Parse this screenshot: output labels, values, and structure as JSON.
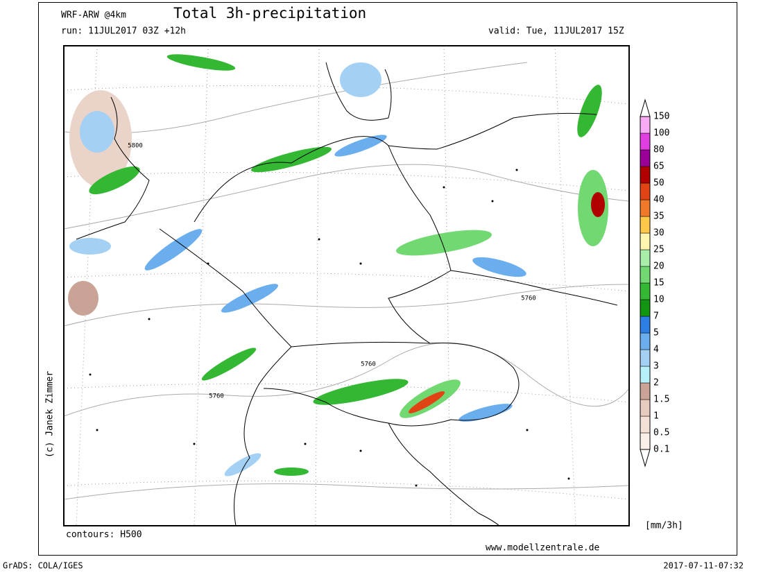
{
  "header": {
    "model": "WRF-ARW @4km",
    "title": "Total 3h-precipitation",
    "run": "run: 11JUL2017 03Z +12h",
    "valid": "valid: Tue, 11JUL2017 15Z"
  },
  "map": {
    "contour_labels": [
      "5800",
      "5760",
      "5760",
      "5760"
    ]
  },
  "legend": {
    "levels": [
      0.1,
      0.5,
      1,
      1.5,
      2,
      3,
      4,
      5,
      7,
      10,
      15,
      20,
      25,
      30,
      35,
      40,
      50,
      65,
      80,
      100,
      150
    ],
    "colors": [
      "#ffffff",
      "#fbf0e8",
      "#f3e0d6",
      "#e6cbbf",
      "#c8a396",
      "#b6f0f8",
      "#a3d0f3",
      "#6aaeee",
      "#2d7fe4",
      "#129612",
      "#34b834",
      "#72d872",
      "#a8eea8",
      "#fff6b0",
      "#ffc848",
      "#f07a2a",
      "#e04414",
      "#b00000",
      "#9a0098",
      "#e03ee0",
      "#f8aaf4",
      "#ffffff"
    ],
    "unit": "[mm/3h]"
  },
  "footer": {
    "copyright": "(c) Janek Zimmer",
    "contours": "contours: H500",
    "website": "www.modellzentrale.de",
    "software": "GrADS: COLA/IGES",
    "timestamp": "2017-07-11-07:32"
  }
}
